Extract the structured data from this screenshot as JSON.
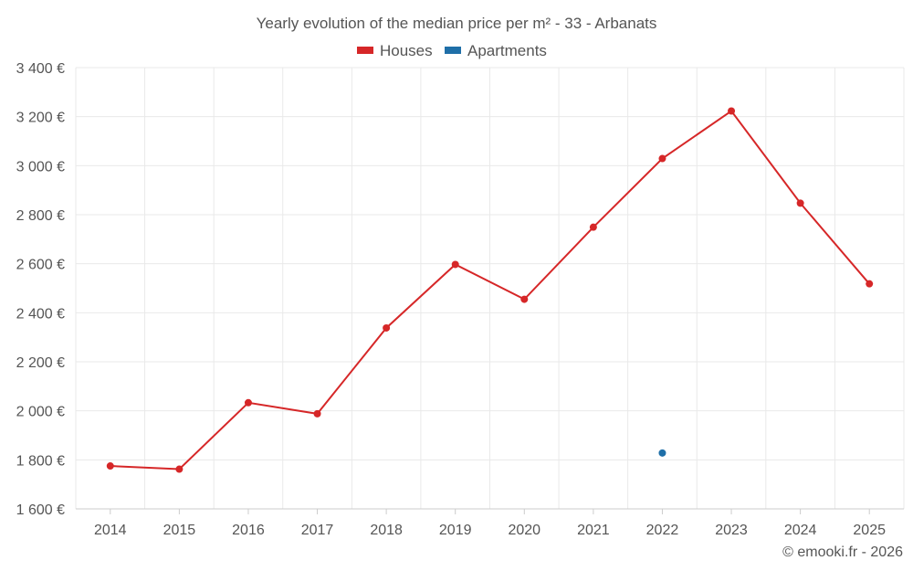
{
  "chart_data": {
    "type": "line",
    "title": "Yearly evolution of the median price per m² - 33 - Arbanats",
    "categories": [
      "2014",
      "2015",
      "2016",
      "2017",
      "2018",
      "2019",
      "2020",
      "2021",
      "2022",
      "2023",
      "2024",
      "2025"
    ],
    "series": [
      {
        "name": "Houses",
        "color": "#d62728",
        "values": [
          1775,
          1762,
          2033,
          1988,
          2338,
          2597,
          2455,
          2749,
          3029,
          3223,
          2847,
          2518
        ]
      },
      {
        "name": "Apartments",
        "color": "#1f6fa8",
        "values": [
          null,
          null,
          null,
          null,
          null,
          null,
          null,
          null,
          1828,
          null,
          null,
          null
        ]
      }
    ],
    "ylim": [
      1600,
      3400
    ],
    "yticks": [
      1600,
      1800,
      2000,
      2200,
      2400,
      2600,
      2800,
      3000,
      3200,
      3400
    ],
    "ytick_labels": [
      "1 600 €",
      "1 800 €",
      "2 000 €",
      "2 200 €",
      "2 400 €",
      "2 600 €",
      "2 800 €",
      "3 000 €",
      "3 200 €",
      "3 400 €"
    ],
    "xlabel": "",
    "ylabel": "",
    "grid": true,
    "legend_position": "top-center"
  },
  "credit": "© emooki.fr - 2026"
}
